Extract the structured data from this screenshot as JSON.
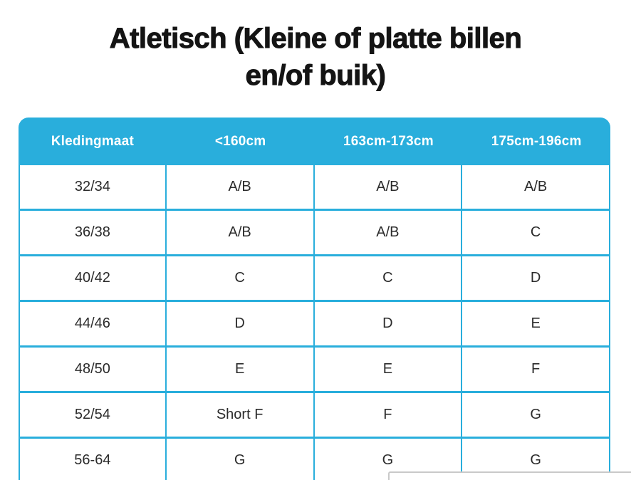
{
  "title": {
    "text": "Atletisch (Kleine of platte billen en/of buik)",
    "line1": "Atletisch (Kleine of platte billen",
    "line2": "en/of buik)"
  },
  "colors": {
    "accent": "#29AEDC",
    "header_text": "#FFFFFF",
    "body_text": "#2B2B2B",
    "title_text": "#141414",
    "overlay_border": "#C9C9C9"
  },
  "table": {
    "headers": [
      "Kledingmaat",
      "<160cm",
      "163cm-173cm",
      "175cm-196cm"
    ],
    "rows": [
      [
        "32/34",
        "A/B",
        "A/B",
        "A/B"
      ],
      [
        "36/38",
        "A/B",
        "A/B",
        "C"
      ],
      [
        "40/42",
        "C",
        "C",
        "D"
      ],
      [
        "44/46",
        "D",
        "D",
        "E"
      ],
      [
        "48/50",
        "E",
        "E",
        "F"
      ],
      [
        "52/54",
        "Short F",
        "F",
        "G"
      ],
      [
        "56-64",
        "G",
        "G",
        "G"
      ]
    ]
  }
}
